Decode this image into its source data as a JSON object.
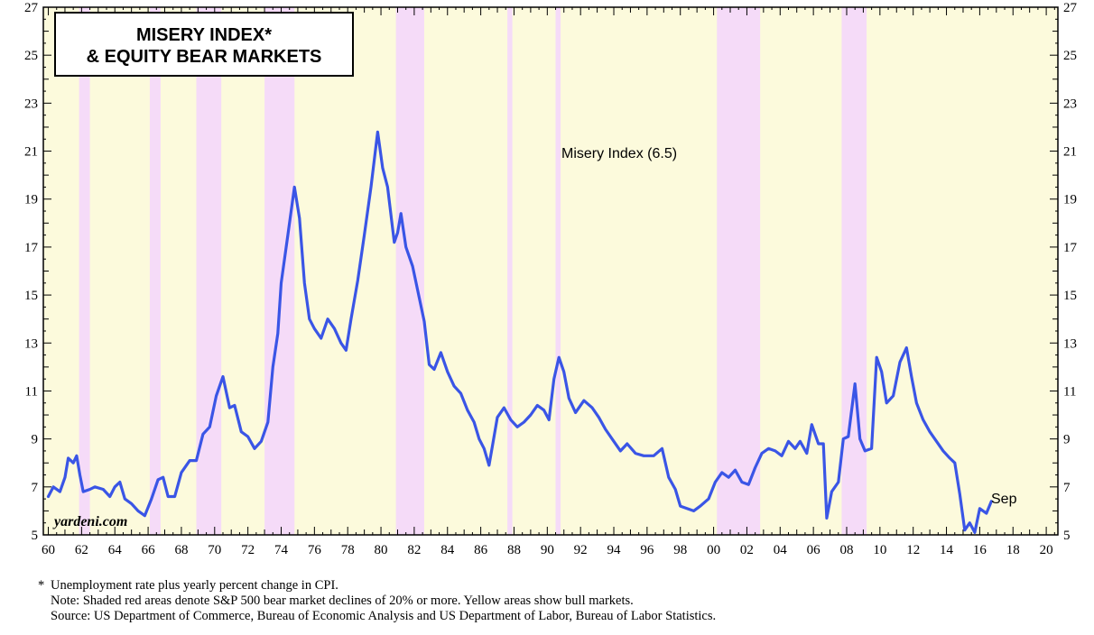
{
  "chart_data": {
    "type": "line",
    "title_line1": "MISERY INDEX*",
    "title_line2": "& EQUITY BEAR MARKETS",
    "series": [
      {
        "label": "Misery Index (6.5)",
        "color": "#3a55e6",
        "points": [
          [
            1960.0,
            6.6
          ],
          [
            1960.3,
            7.0
          ],
          [
            1960.7,
            6.8
          ],
          [
            1961.0,
            7.4
          ],
          [
            1961.2,
            8.2
          ],
          [
            1961.5,
            8.0
          ],
          [
            1961.7,
            8.3
          ],
          [
            1961.9,
            7.5
          ],
          [
            1962.1,
            6.8
          ],
          [
            1962.5,
            6.9
          ],
          [
            1962.8,
            7.0
          ],
          [
            1963.3,
            6.9
          ],
          [
            1963.7,
            6.6
          ],
          [
            1964.0,
            7.0
          ],
          [
            1964.3,
            7.2
          ],
          [
            1964.6,
            6.5
          ],
          [
            1965.0,
            6.3
          ],
          [
            1965.4,
            6.0
          ],
          [
            1965.8,
            5.8
          ],
          [
            1966.2,
            6.5
          ],
          [
            1966.6,
            7.3
          ],
          [
            1966.9,
            7.4
          ],
          [
            1967.2,
            6.6
          ],
          [
            1967.6,
            6.6
          ],
          [
            1968.0,
            7.6
          ],
          [
            1968.5,
            8.1
          ],
          [
            1968.9,
            8.1
          ],
          [
            1969.3,
            9.2
          ],
          [
            1969.7,
            9.5
          ],
          [
            1970.1,
            10.8
          ],
          [
            1970.5,
            11.6
          ],
          [
            1970.9,
            10.3
          ],
          [
            1971.2,
            10.4
          ],
          [
            1971.6,
            9.3
          ],
          [
            1972.0,
            9.1
          ],
          [
            1972.4,
            8.6
          ],
          [
            1972.8,
            8.9
          ],
          [
            1973.2,
            9.7
          ],
          [
            1973.5,
            12.0
          ],
          [
            1973.8,
            13.4
          ],
          [
            1974.0,
            15.5
          ],
          [
            1974.4,
            17.5
          ],
          [
            1974.8,
            19.5
          ],
          [
            1975.1,
            18.2
          ],
          [
            1975.4,
            15.5
          ],
          [
            1975.7,
            14.0
          ],
          [
            1976.0,
            13.6
          ],
          [
            1976.4,
            13.2
          ],
          [
            1976.8,
            14.0
          ],
          [
            1977.2,
            13.6
          ],
          [
            1977.6,
            13.0
          ],
          [
            1977.9,
            12.7
          ],
          [
            1978.2,
            14.0
          ],
          [
            1978.6,
            15.6
          ],
          [
            1979.0,
            17.5
          ],
          [
            1979.4,
            19.5
          ],
          [
            1979.8,
            21.8
          ],
          [
            1980.1,
            20.3
          ],
          [
            1980.4,
            19.5
          ],
          [
            1980.8,
            17.2
          ],
          [
            1981.0,
            17.6
          ],
          [
            1981.2,
            18.4
          ],
          [
            1981.5,
            17.0
          ],
          [
            1981.9,
            16.2
          ],
          [
            1982.3,
            14.9
          ],
          [
            1982.6,
            13.9
          ],
          [
            1982.9,
            12.1
          ],
          [
            1983.2,
            11.9
          ],
          [
            1983.6,
            12.6
          ],
          [
            1984.0,
            11.8
          ],
          [
            1984.4,
            11.2
          ],
          [
            1984.8,
            10.9
          ],
          [
            1985.2,
            10.2
          ],
          [
            1985.6,
            9.7
          ],
          [
            1985.9,
            9.0
          ],
          [
            1986.2,
            8.6
          ],
          [
            1986.5,
            7.9
          ],
          [
            1986.7,
            8.7
          ],
          [
            1987.0,
            9.9
          ],
          [
            1987.4,
            10.3
          ],
          [
            1987.8,
            9.8
          ],
          [
            1988.2,
            9.5
          ],
          [
            1988.6,
            9.7
          ],
          [
            1989.0,
            10.0
          ],
          [
            1989.4,
            10.4
          ],
          [
            1989.8,
            10.2
          ],
          [
            1990.1,
            9.8
          ],
          [
            1990.4,
            11.5
          ],
          [
            1990.7,
            12.4
          ],
          [
            1991.0,
            11.8
          ],
          [
            1991.3,
            10.7
          ],
          [
            1991.7,
            10.1
          ],
          [
            1992.2,
            10.6
          ],
          [
            1992.7,
            10.3
          ],
          [
            1993.1,
            9.9
          ],
          [
            1993.5,
            9.4
          ],
          [
            1994.0,
            8.9
          ],
          [
            1994.4,
            8.5
          ],
          [
            1994.8,
            8.8
          ],
          [
            1995.3,
            8.4
          ],
          [
            1995.8,
            8.3
          ],
          [
            1996.4,
            8.3
          ],
          [
            1996.9,
            8.6
          ],
          [
            1997.3,
            7.4
          ],
          [
            1997.7,
            6.9
          ],
          [
            1998.0,
            6.2
          ],
          [
            1998.4,
            6.1
          ],
          [
            1998.8,
            6.0
          ],
          [
            1999.2,
            6.2
          ],
          [
            1999.7,
            6.5
          ],
          [
            2000.1,
            7.2
          ],
          [
            2000.5,
            7.6
          ],
          [
            2000.9,
            7.4
          ],
          [
            2001.3,
            7.7
          ],
          [
            2001.7,
            7.2
          ],
          [
            2002.1,
            7.1
          ],
          [
            2002.5,
            7.8
          ],
          [
            2002.9,
            8.4
          ],
          [
            2003.3,
            8.6
          ],
          [
            2003.7,
            8.5
          ],
          [
            2004.1,
            8.3
          ],
          [
            2004.5,
            8.9
          ],
          [
            2004.9,
            8.6
          ],
          [
            2005.2,
            8.9
          ],
          [
            2005.6,
            8.4
          ],
          [
            2005.9,
            9.6
          ],
          [
            2006.3,
            8.8
          ],
          [
            2006.6,
            8.8
          ],
          [
            2006.8,
            5.7
          ],
          [
            2007.1,
            6.8
          ],
          [
            2007.5,
            7.2
          ],
          [
            2007.8,
            9.0
          ],
          [
            2008.1,
            9.1
          ],
          [
            2008.5,
            11.3
          ],
          [
            2008.8,
            9.0
          ],
          [
            2009.1,
            8.5
          ],
          [
            2009.5,
            8.6
          ],
          [
            2009.8,
            12.4
          ],
          [
            2010.1,
            11.8
          ],
          [
            2010.4,
            10.5
          ],
          [
            2010.8,
            10.8
          ],
          [
            2011.2,
            12.2
          ],
          [
            2011.6,
            12.8
          ],
          [
            2011.9,
            11.6
          ],
          [
            2012.2,
            10.5
          ],
          [
            2012.6,
            9.8
          ],
          [
            2013.0,
            9.3
          ],
          [
            2013.4,
            8.9
          ],
          [
            2013.8,
            8.5
          ],
          [
            2014.2,
            8.2
          ],
          [
            2014.5,
            8.0
          ],
          [
            2014.8,
            6.7
          ],
          [
            2015.1,
            5.2
          ],
          [
            2015.4,
            5.5
          ],
          [
            2015.7,
            5.1
          ],
          [
            2016.0,
            6.1
          ],
          [
            2016.4,
            5.9
          ],
          [
            2016.7,
            6.4
          ]
        ]
      }
    ],
    "bear_market_periods": [
      [
        1961.85,
        1962.5
      ],
      [
        1966.1,
        1966.75
      ],
      [
        1968.9,
        1970.4
      ],
      [
        1973.0,
        1974.8
      ],
      [
        1980.9,
        1982.6
      ],
      [
        1987.6,
        1987.9
      ],
      [
        1990.5,
        1990.8
      ],
      [
        2000.2,
        2002.8
      ],
      [
        2007.7,
        2009.2
      ]
    ],
    "colors": {
      "bull_market_fill": "#fcfadc",
      "bear_market_fill": "#f5dbf8",
      "line": "#3a55e6"
    },
    "x_axis": {
      "min": 1959.7,
      "max": 2020.7,
      "tick_years": [
        1960,
        1962,
        1964,
        1966,
        1968,
        1970,
        1972,
        1974,
        1976,
        1978,
        1980,
        1982,
        1984,
        1986,
        1988,
        1990,
        1992,
        1994,
        1996,
        1998,
        2000,
        2002,
        2004,
        2006,
        2008,
        2010,
        2012,
        2014,
        2016,
        2018,
        2020
      ],
      "tick_labels": [
        "60",
        "62",
        "64",
        "66",
        "68",
        "70",
        "72",
        "74",
        "76",
        "78",
        "80",
        "82",
        "84",
        "86",
        "88",
        "90",
        "92",
        "94",
        "96",
        "98",
        "00",
        "02",
        "04",
        "06",
        "08",
        "10",
        "12",
        "14",
        "16",
        "18",
        "20"
      ]
    },
    "y_axis": {
      "min": 5,
      "max": 27,
      "tick_labels": [
        "5",
        "7",
        "9",
        "11",
        "13",
        "15",
        "17",
        "19",
        "21",
        "23",
        "25",
        "27"
      ],
      "tick_values": [
        5,
        7,
        9,
        11,
        13,
        15,
        17,
        19,
        21,
        23,
        25,
        27
      ]
    },
    "annotations": {
      "series_label": "Misery Index (6.5)",
      "end_label": "Sep",
      "brand": "yardeni.com"
    }
  },
  "footnotes": {
    "marker": "*",
    "line1": "Unemployment rate plus yearly percent change in CPI.",
    "line2": "Note: Shaded red areas denote S&P 500 bear market declines of 20% or more. Yellow areas show bull markets.",
    "line3": "Source: US Department of Commerce, Bureau of Economic Analysis and US Department of Labor, Bureau of Labor Statistics."
  }
}
